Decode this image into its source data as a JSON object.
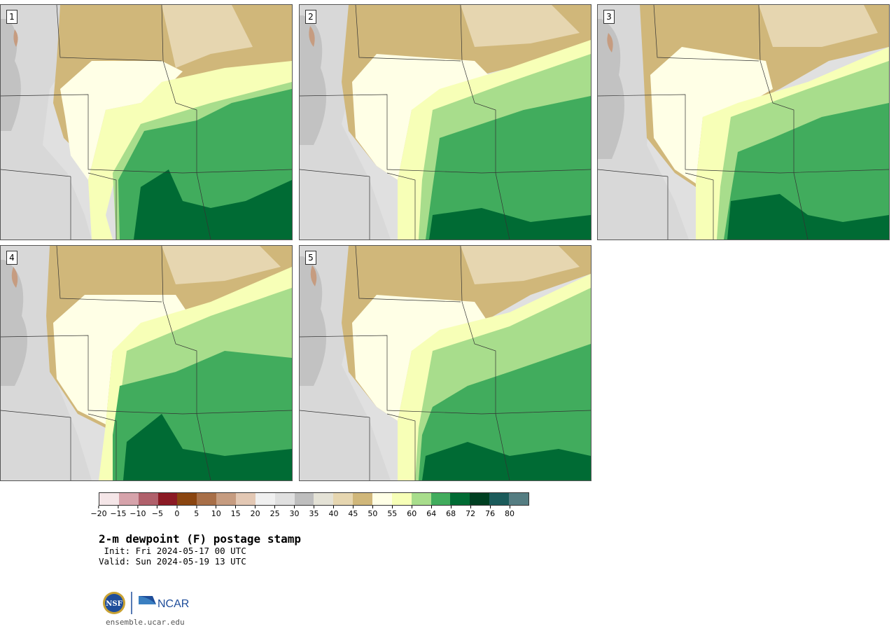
{
  "panels": [
    {
      "label": "1"
    },
    {
      "label": "2"
    },
    {
      "label": "3"
    },
    {
      "label": "4"
    },
    {
      "label": "5"
    }
  ],
  "colorbar": {
    "colors": [
      "#f5e6e8",
      "#d6a3ab",
      "#b0606b",
      "#8b1a24",
      "#8a4510",
      "#a86f48",
      "#c69c80",
      "#e3c8b4",
      "#f0f0f0",
      "#e0e0e0",
      "#bebebe",
      "#e4e2d6",
      "#e6d6b0",
      "#d0b77a",
      "#ffffe6",
      "#f7ffb7",
      "#a8dd8c",
      "#41ac5d",
      "#006b34",
      "#004022",
      "#1b5b5b",
      "#557d82"
    ],
    "tick_labels": [
      "−20",
      "−15",
      "−10",
      "−5",
      "0",
      "5",
      "10",
      "15",
      "20",
      "25",
      "30",
      "35",
      "40",
      "45",
      "50",
      "55",
      "60",
      "64",
      "68",
      "72",
      "76",
      "80"
    ]
  },
  "title": "2-m dewpoint (F) postage stamp",
  "init": " Init: Fri 2024-05-17 00 UTC",
  "valid": "Valid: Sun 2024-05-19 13 UTC",
  "logos": {
    "nsf": "NSF",
    "ncar": "NCAR"
  },
  "site": "ensemble.ucar.edu"
}
